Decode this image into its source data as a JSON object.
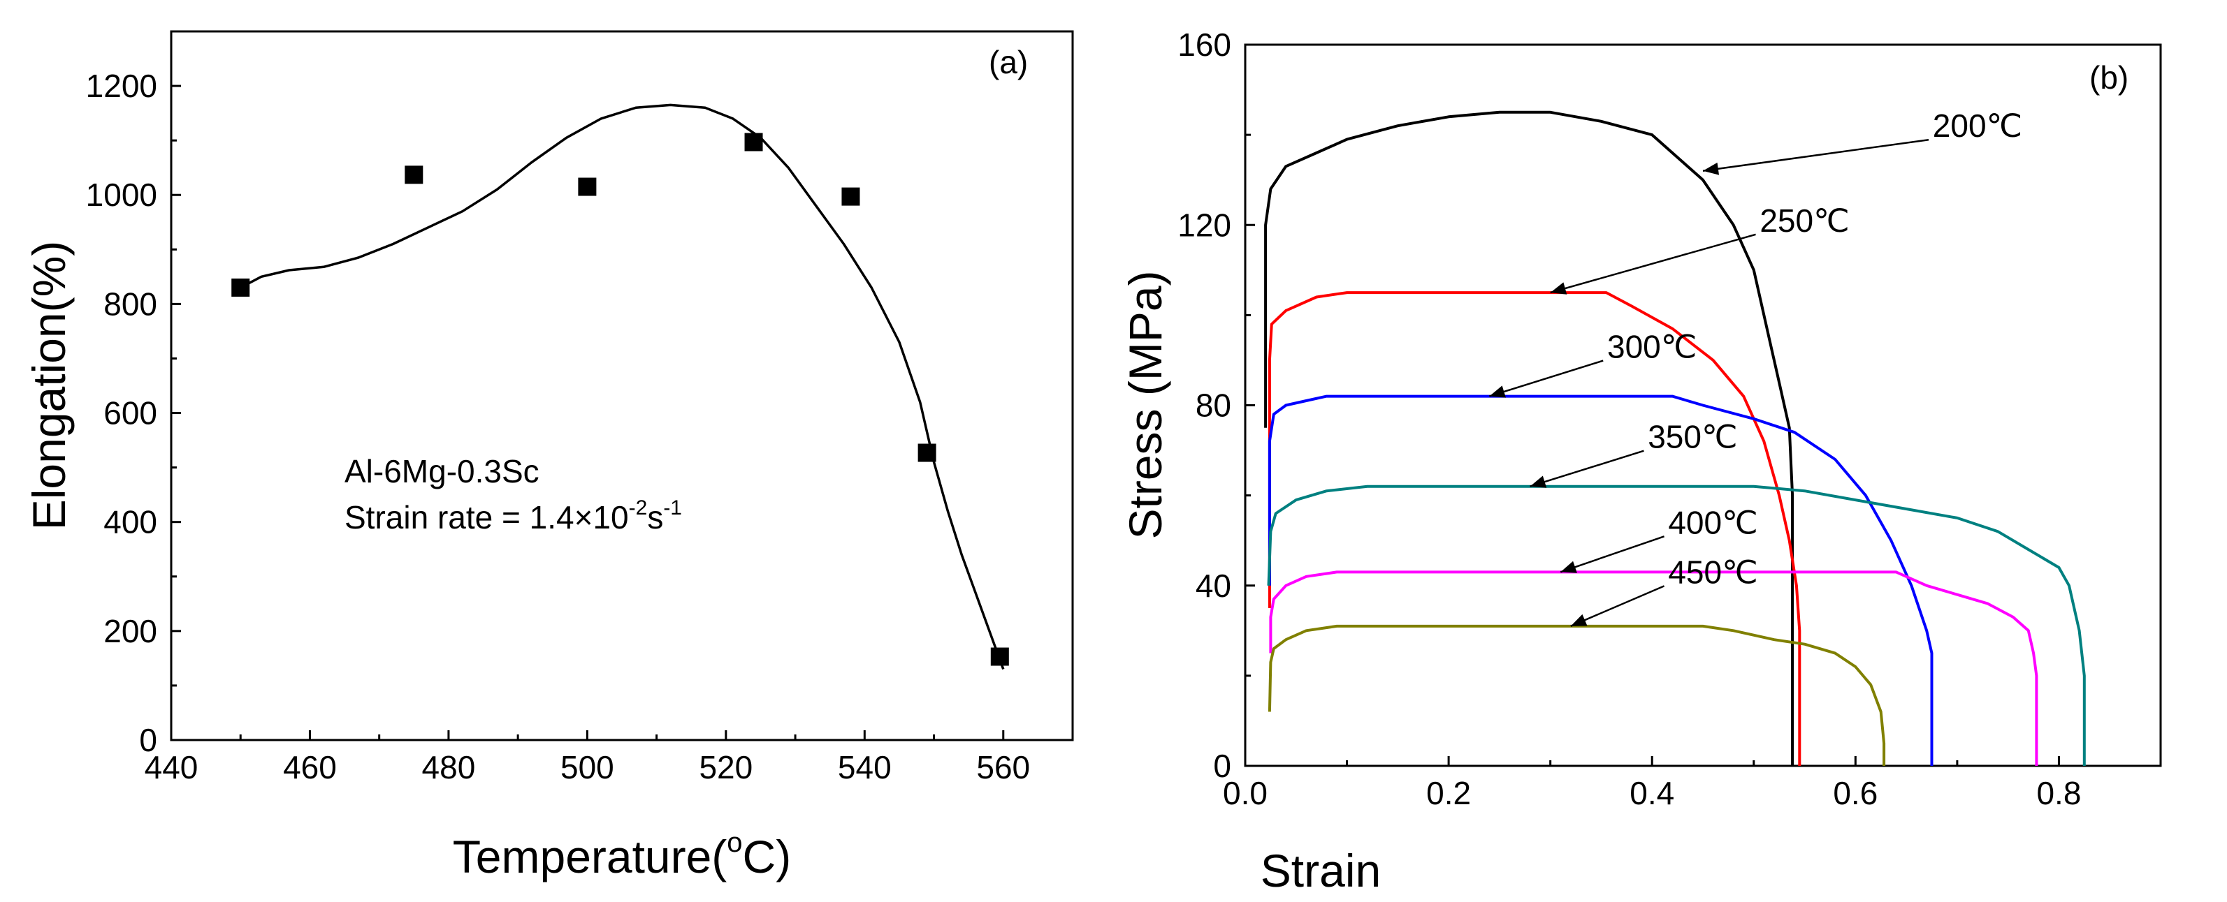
{
  "chart_data": [
    {
      "panel": "(a)",
      "type": "scatter",
      "xlabel": "Temperature(",
      "xlabel_unit": "C)",
      "degree_mark": "o",
      "ylabel": "Elongation(%)",
      "xlim": [
        440,
        570
      ],
      "ylim": [
        0,
        1300
      ],
      "x_ticks": [
        440,
        460,
        480,
        500,
        520,
        540,
        560
      ],
      "y_ticks": [
        0,
        200,
        400,
        600,
        800,
        1000,
        1200
      ],
      "grid": false,
      "points": [
        {
          "x": 450,
          "y": 830
        },
        {
          "x": 475,
          "y": 1037
        },
        {
          "x": 500,
          "y": 1015
        },
        {
          "x": 524,
          "y": 1097
        },
        {
          "x": 538,
          "y": 997
        },
        {
          "x": 549,
          "y": 527
        },
        {
          "x": 559.5,
          "y": 153
        }
      ],
      "fit_curve": [
        [
          450,
          830
        ],
        [
          453,
          850
        ],
        [
          457,
          862
        ],
        [
          462,
          868
        ],
        [
          467,
          885
        ],
        [
          472,
          910
        ],
        [
          477,
          940
        ],
        [
          482,
          970
        ],
        [
          487,
          1010
        ],
        [
          492,
          1060
        ],
        [
          497,
          1105
        ],
        [
          502,
          1140
        ],
        [
          507,
          1160
        ],
        [
          512,
          1165
        ],
        [
          517,
          1160
        ],
        [
          521,
          1140
        ],
        [
          525,
          1105
        ],
        [
          529,
          1050
        ],
        [
          533,
          980
        ],
        [
          537,
          910
        ],
        [
          541,
          830
        ],
        [
          545,
          730
        ],
        [
          548,
          620
        ],
        [
          550,
          510
        ],
        [
          552,
          420
        ],
        [
          554,
          340
        ],
        [
          556,
          270
        ],
        [
          558,
          200
        ],
        [
          560,
          130
        ]
      ],
      "annotations": {
        "alloy": "Al-6Mg-0.3Sc",
        "rate_prefix": "Strain rate = 1.4×10",
        "rate_exp1": "-2",
        "rate_mid": "s",
        "rate_exp2": "-1"
      }
    },
    {
      "panel": "(b)",
      "type": "line",
      "xlabel": "Strain",
      "ylabel": "Stress (MPa)",
      "xlim": [
        0.0,
        0.9
      ],
      "ylim": [
        0,
        160
      ],
      "x_ticks": [
        0.0,
        0.2,
        0.4,
        0.6,
        0.8
      ],
      "x_tick_labels": [
        "0.0",
        "0.2",
        "0.4",
        "0.6",
        "0.8"
      ],
      "y_ticks": [
        0,
        40,
        80,
        120,
        160
      ],
      "grid": false,
      "series": [
        {
          "name": "200℃",
          "color": "#000000",
          "points": [
            [
              0.02,
              75
            ],
            [
              0.02,
              120
            ],
            [
              0.025,
              128
            ],
            [
              0.04,
              133
            ],
            [
              0.07,
              136
            ],
            [
              0.1,
              139
            ],
            [
              0.15,
              142
            ],
            [
              0.2,
              144
            ],
            [
              0.25,
              145
            ],
            [
              0.3,
              145
            ],
            [
              0.35,
              143
            ],
            [
              0.4,
              140
            ],
            [
              0.45,
              130
            ],
            [
              0.48,
              120
            ],
            [
              0.5,
              110
            ],
            [
              0.515,
              95
            ],
            [
              0.525,
              85
            ],
            [
              0.535,
              75
            ],
            [
              0.538,
              60
            ],
            [
              0.538,
              0
            ]
          ],
          "label_at": [
            0.72,
            142
          ],
          "arrow_to": [
            0.45,
            132
          ]
        },
        {
          "name": "250℃",
          "color": "#ff0000",
          "points": [
            [
              0.024,
              35
            ],
            [
              0.024,
              90
            ],
            [
              0.026,
              98
            ],
            [
              0.04,
              101
            ],
            [
              0.07,
              104
            ],
            [
              0.1,
              105
            ],
            [
              0.2,
              105
            ],
            [
              0.3,
              105
            ],
            [
              0.355,
              105
            ],
            [
              0.38,
              102
            ],
            [
              0.42,
              97
            ],
            [
              0.46,
              90
            ],
            [
              0.49,
              82
            ],
            [
              0.51,
              72
            ],
            [
              0.525,
              60
            ],
            [
              0.535,
              50
            ],
            [
              0.542,
              40
            ],
            [
              0.545,
              30
            ],
            [
              0.545,
              0
            ]
          ],
          "label_at": [
            0.55,
            121
          ],
          "arrow_to": [
            0.3,
            105
          ]
        },
        {
          "name": "300℃",
          "color": "#0000ff",
          "points": [
            [
              0.024,
              40
            ],
            [
              0.024,
              72
            ],
            [
              0.028,
              78
            ],
            [
              0.04,
              80
            ],
            [
              0.06,
              81
            ],
            [
              0.08,
              82
            ],
            [
              0.15,
              82
            ],
            [
              0.3,
              82
            ],
            [
              0.42,
              82
            ],
            [
              0.45,
              80
            ],
            [
              0.5,
              77
            ],
            [
              0.54,
              74
            ],
            [
              0.58,
              68
            ],
            [
              0.61,
              60
            ],
            [
              0.635,
              50
            ],
            [
              0.655,
              40
            ],
            [
              0.67,
              30
            ],
            [
              0.675,
              25
            ],
            [
              0.675,
              0
            ]
          ],
          "label_at": [
            0.4,
            93
          ],
          "arrow_to": [
            0.24,
            82
          ]
        },
        {
          "name": "350℃",
          "color": "#008080",
          "points": [
            [
              0.023,
              40
            ],
            [
              0.025,
              52
            ],
            [
              0.03,
              56
            ],
            [
              0.05,
              59
            ],
            [
              0.08,
              61
            ],
            [
              0.12,
              62
            ],
            [
              0.3,
              62
            ],
            [
              0.5,
              62
            ],
            [
              0.55,
              61
            ],
            [
              0.6,
              59
            ],
            [
              0.65,
              57
            ],
            [
              0.7,
              55
            ],
            [
              0.74,
              52
            ],
            [
              0.77,
              48
            ],
            [
              0.8,
              44
            ],
            [
              0.81,
              40
            ],
            [
              0.82,
              30
            ],
            [
              0.825,
              20
            ],
            [
              0.825,
              0
            ]
          ],
          "label_at": [
            0.44,
            73
          ],
          "arrow_to": [
            0.28,
            62
          ]
        },
        {
          "name": "400℃",
          "color": "#ff00ff",
          "points": [
            [
              0.025,
              25
            ],
            [
              0.025,
              33
            ],
            [
              0.028,
              37
            ],
            [
              0.04,
              40
            ],
            [
              0.06,
              42
            ],
            [
              0.09,
              43
            ],
            [
              0.3,
              43
            ],
            [
              0.5,
              43
            ],
            [
              0.6,
              43
            ],
            [
              0.64,
              43
            ],
            [
              0.67,
              40
            ],
            [
              0.7,
              38
            ],
            [
              0.73,
              36
            ],
            [
              0.755,
              33
            ],
            [
              0.77,
              30
            ],
            [
              0.775,
              25
            ],
            [
              0.778,
              20
            ],
            [
              0.778,
              0
            ]
          ],
          "label_at": [
            0.46,
            54
          ],
          "arrow_to": [
            0.31,
            43
          ]
        },
        {
          "name": "450℃",
          "color": "#808000",
          "points": [
            [
              0.024,
              12
            ],
            [
              0.025,
              23
            ],
            [
              0.028,
              26
            ],
            [
              0.04,
              28
            ],
            [
              0.06,
              30
            ],
            [
              0.09,
              31
            ],
            [
              0.2,
              31
            ],
            [
              0.3,
              31
            ],
            [
              0.45,
              31
            ],
            [
              0.48,
              30
            ],
            [
              0.52,
              28
            ],
            [
              0.55,
              27
            ],
            [
              0.58,
              25
            ],
            [
              0.6,
              22
            ],
            [
              0.615,
              18
            ],
            [
              0.625,
              12
            ],
            [
              0.628,
              5
            ],
            [
              0.628,
              0
            ]
          ],
          "label_at": [
            0.46,
            43
          ],
          "arrow_to": [
            0.32,
            31
          ]
        }
      ]
    }
  ]
}
